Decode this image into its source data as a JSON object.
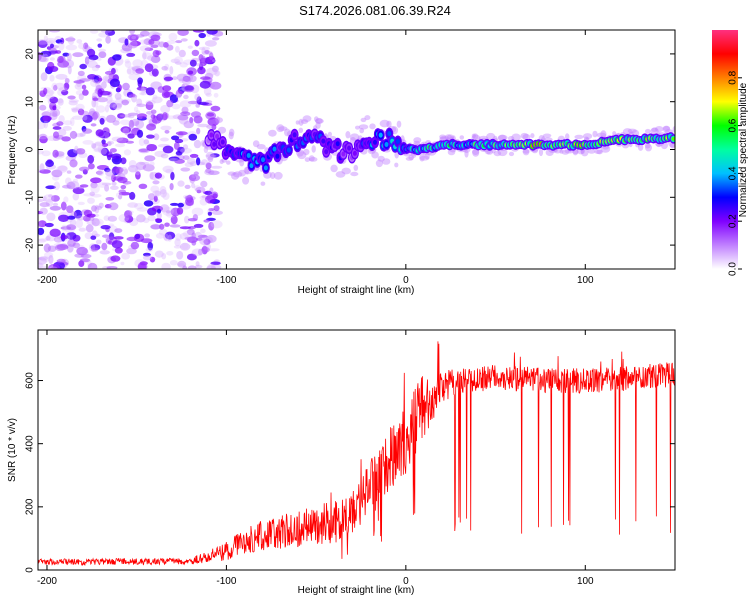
{
  "title": "S174.2026.081.06.39.R24",
  "chart_data": [
    {
      "type": "heatmap",
      "xlabel": "Height of straight line (km)",
      "ylabel": "Frequency (Hz)",
      "xlim": [
        -205,
        150
      ],
      "ylim": [
        -25,
        25
      ],
      "xticks": [
        -200,
        -100,
        0,
        100
      ],
      "yticks": [
        -20,
        -10,
        0,
        10,
        20
      ],
      "ridge": {
        "x": [
          -110,
          -100,
          -90,
          -80,
          -70,
          -60,
          -50,
          -40,
          -30,
          -20,
          -10,
          0,
          10,
          20,
          40,
          60,
          80,
          100,
          120,
          150
        ],
        "freq": [
          3,
          0,
          -2,
          -3,
          0,
          2,
          2,
          0,
          -1,
          2,
          2,
          0,
          0,
          1,
          1,
          1,
          1,
          1,
          2,
          2.5
        ],
        "amplitude": [
          0.15,
          0.3,
          0.35,
          0.35,
          0.3,
          0.3,
          0.3,
          0.25,
          0.2,
          0.35,
          0.4,
          0.45,
          0.55,
          0.5,
          0.55,
          0.6,
          0.75,
          0.7,
          0.65,
          0.6
        ]
      },
      "noise_region": {
        "x_from": -205,
        "x_to": -105,
        "amplitude": 0.1
      }
    },
    {
      "type": "colorbar",
      "label": "Normalized spectral amplitude",
      "range": [
        0,
        1
      ],
      "ticks": [
        "0.0",
        "0.2",
        "0.4",
        "0.6",
        "0.8"
      ],
      "colors": [
        "#ffffff",
        "#c080ff",
        "#8000ff",
        "#0000ff",
        "#00c0ff",
        "#00ffa0",
        "#00ff00",
        "#ffff00",
        "#ff8000",
        "#ff0000",
        "#ff3080"
      ]
    },
    {
      "type": "line",
      "xlabel": "Height of straight line (km)",
      "ylabel": "SNR (10 * v/v)",
      "xlim": [
        -205,
        150
      ],
      "ylim": [
        0,
        760
      ],
      "xticks": [
        -200,
        -100,
        0,
        100
      ],
      "yticks": [
        0,
        200,
        400,
        600
      ],
      "color": "#ff0000",
      "envelope": {
        "x": [
          -205,
          -120,
          -100,
          -90,
          -80,
          -60,
          -40,
          -30,
          -20,
          -10,
          0,
          10,
          20,
          30,
          50,
          80,
          110,
          150
        ],
        "baseline": [
          25,
          28,
          60,
          90,
          110,
          130,
          150,
          170,
          280,
          330,
          420,
          520,
          580,
          600,
          610,
          600,
          600,
          620
        ],
        "spread": [
          10,
          10,
          30,
          40,
          50,
          60,
          70,
          80,
          90,
          110,
          120,
          100,
          50,
          40,
          40,
          40,
          40,
          40
        ]
      }
    }
  ]
}
